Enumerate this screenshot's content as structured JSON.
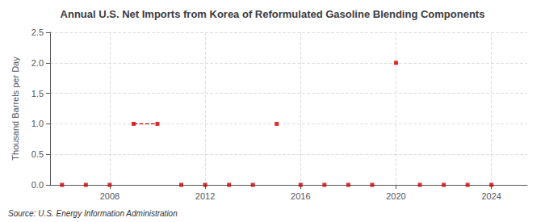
{
  "chart_data": {
    "type": "line",
    "title": "Annual U.S. Net Imports from Korea of Reformulated Gasoline Blending Components",
    "ylabel": "Thousand Barrels per Day",
    "source": "Source: U.S. Energy Information Administration",
    "x": [
      2006,
      2007,
      2008,
      2009,
      2010,
      2011,
      2012,
      2013,
      2014,
      2015,
      2016,
      2017,
      2018,
      2019,
      2020,
      2021,
      2022,
      2023,
      2024
    ],
    "values": [
      0,
      0,
      0,
      1.0,
      1.0,
      0,
      0,
      0,
      0,
      1.0,
      0,
      0,
      0,
      0,
      2.0,
      0,
      0,
      0,
      0
    ],
    "color": "#cc0000",
    "marker": "square",
    "line_style": "dashed",
    "xlim": [
      2005.5,
      2025.5
    ],
    "xticks": [
      2008,
      2012,
      2016,
      2020,
      2024
    ],
    "ylim": [
      0,
      2.5
    ],
    "yticks": [
      {
        "value": 0.0,
        "label": "0.0"
      },
      0.5,
      {
        "value": 1.0,
        "label": "1.0"
      },
      1.5,
      {
        "value": 2.0,
        "label": "2.0"
      },
      2.5
    ],
    "grid": true
  }
}
